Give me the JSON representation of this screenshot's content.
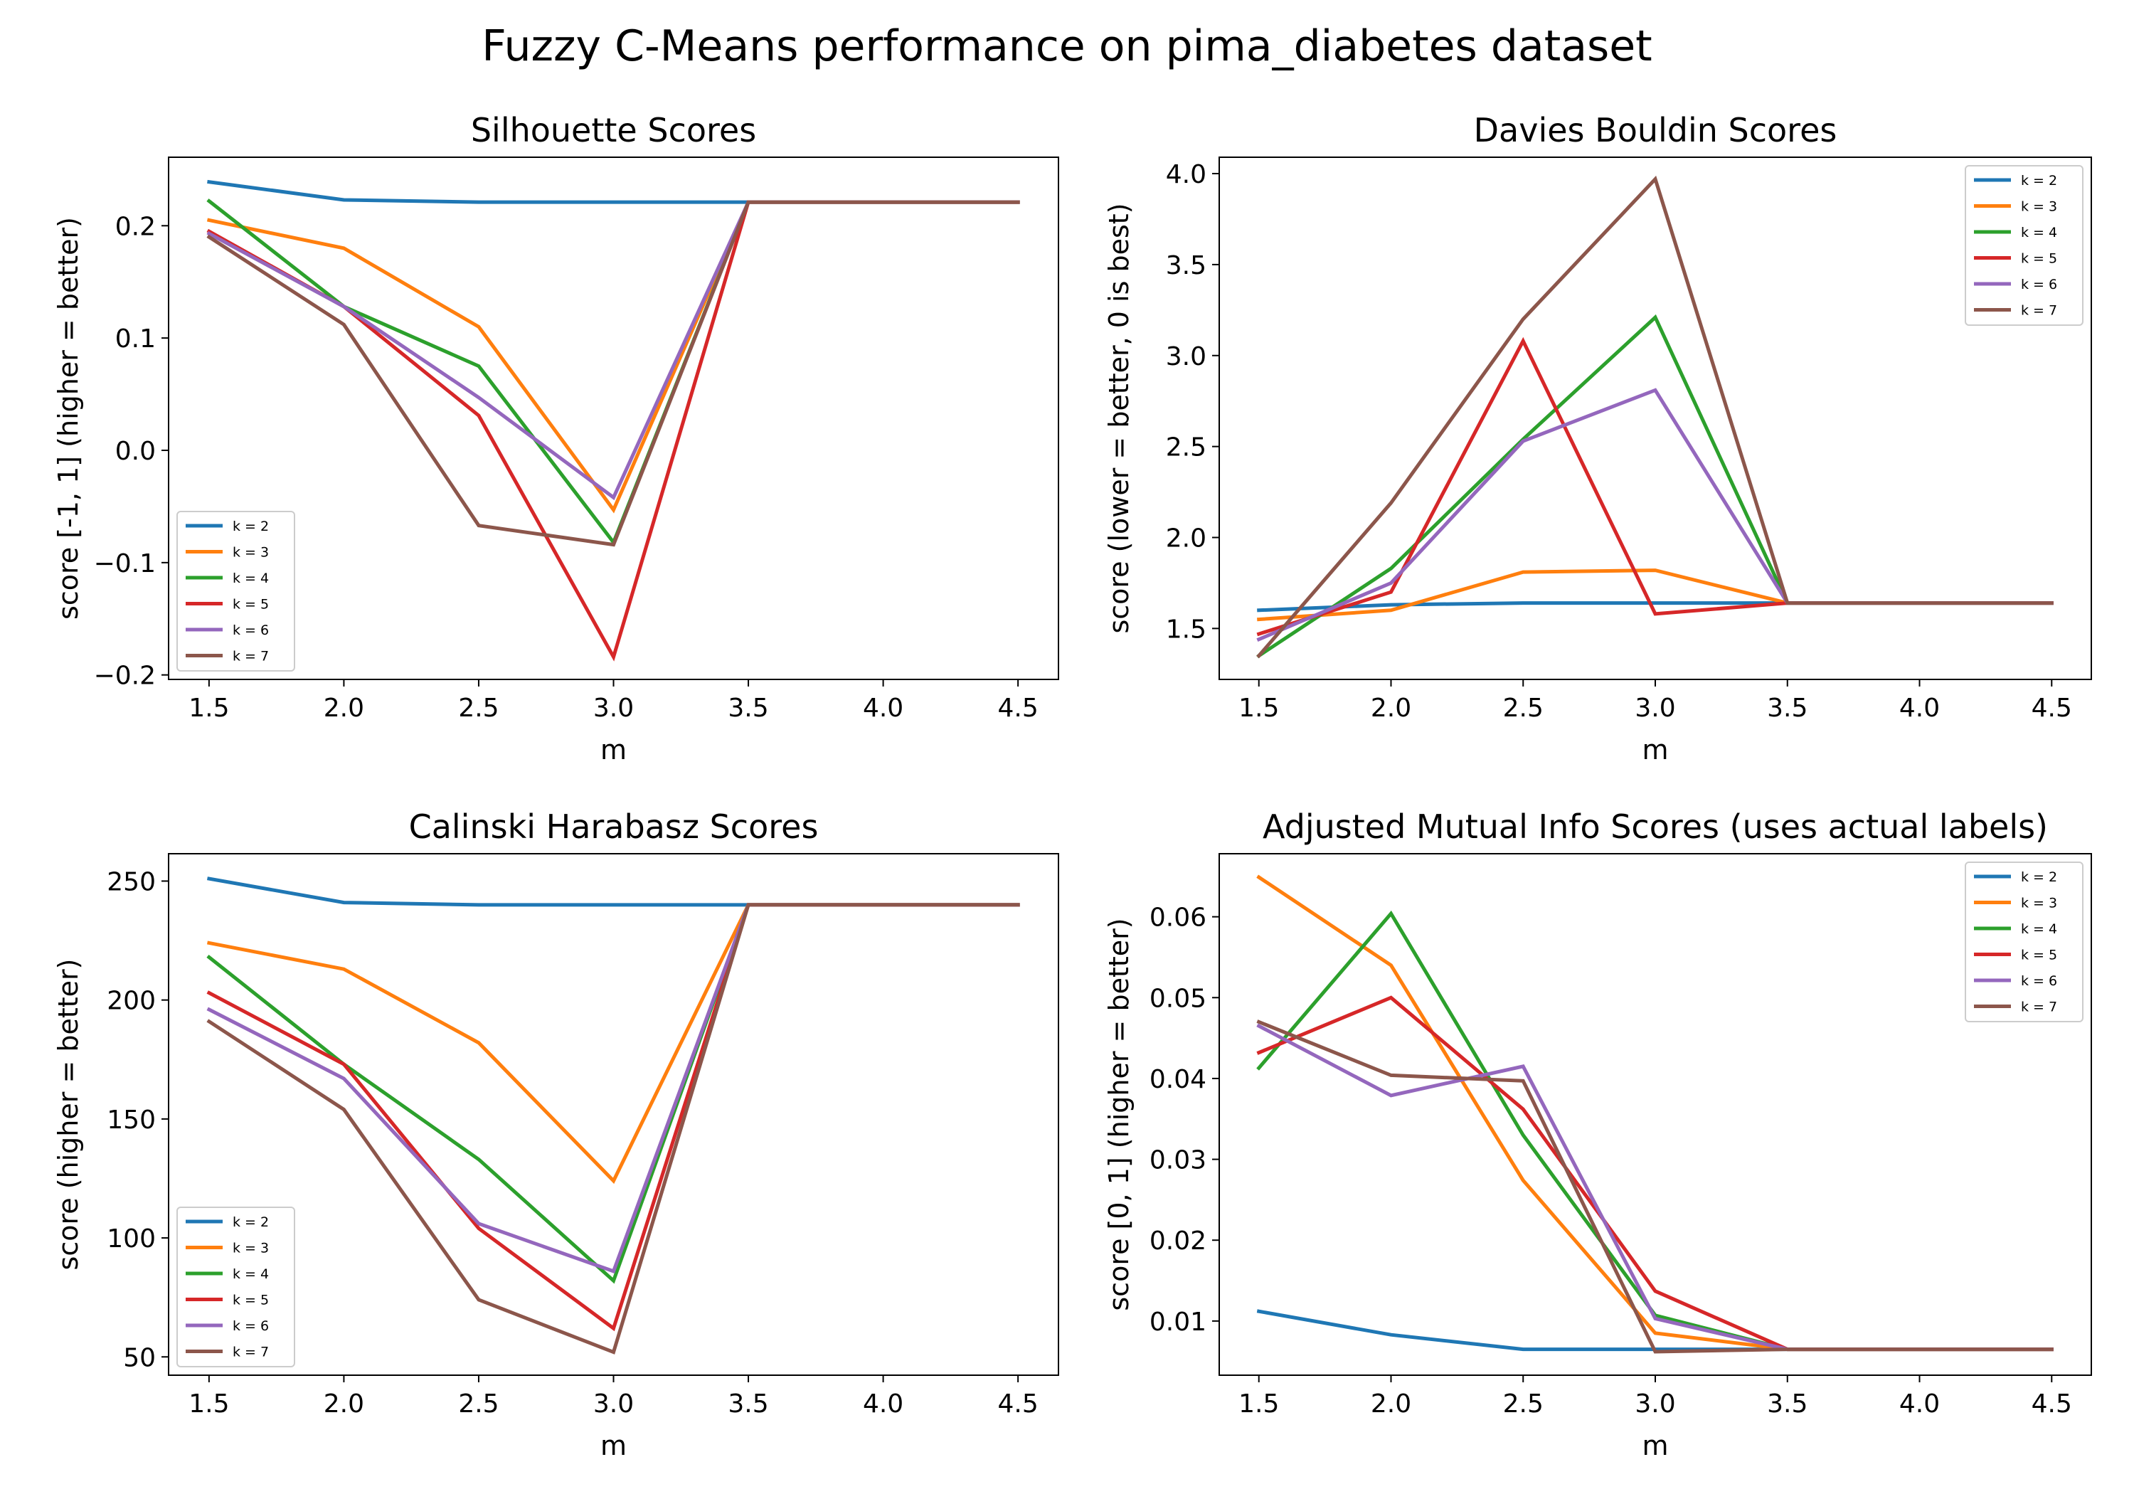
{
  "figure": {
    "title": "Fuzzy C-Means performance on pima_diabetes dataset"
  },
  "colors": {
    "k = 2": "#1f77b4",
    "k = 3": "#ff7f0e",
    "k = 4": "#2ca02c",
    "k = 5": "#d62728",
    "k = 6": "#9467bd",
    "k = 7": "#8c564b"
  },
  "chart_data": [
    {
      "type": "line",
      "title": "Silhouette Scores",
      "xlabel": "m",
      "ylabel": "score [-1, 1] (higher = better)",
      "x": [
        1.5,
        2.0,
        2.5,
        3.0,
        3.5,
        4.0,
        4.5
      ],
      "xticks": [
        "1.5",
        "2.0",
        "2.5",
        "3.0",
        "3.5",
        "4.0",
        "4.5"
      ],
      "xlim": [
        1.35,
        4.65
      ],
      "yticks": [
        -0.2,
        -0.1,
        0.0,
        0.1,
        0.2
      ],
      "ytick_labels": [
        "−0.2",
        "−0.1",
        "0.0",
        "0.1",
        "0.2"
      ],
      "ylim": [
        -0.204,
        0.261
      ],
      "legend_position": "lower-left",
      "series": [
        {
          "name": "k = 2",
          "values": [
            0.239,
            0.223,
            0.221,
            0.221,
            0.221,
            0.221,
            0.221
          ]
        },
        {
          "name": "k = 3",
          "values": [
            0.205,
            0.18,
            0.11,
            -0.053,
            0.221,
            0.221,
            0.221
          ]
        },
        {
          "name": "k = 4",
          "values": [
            0.222,
            0.128,
            0.075,
            -0.082,
            0.221,
            0.221,
            0.221
          ]
        },
        {
          "name": "k = 5",
          "values": [
            0.195,
            0.128,
            0.031,
            -0.184,
            0.221,
            0.221,
            0.221
          ]
        },
        {
          "name": "k = 6",
          "values": [
            0.193,
            0.128,
            0.047,
            -0.042,
            0.221,
            0.221,
            0.221
          ]
        },
        {
          "name": "k = 7",
          "values": [
            0.19,
            0.112,
            -0.067,
            -0.084,
            0.221,
            0.221,
            0.221
          ]
        }
      ]
    },
    {
      "type": "line",
      "title": "Davies Bouldin Scores",
      "xlabel": "m",
      "ylabel": "score (lower = better, 0 is best)",
      "x": [
        1.5,
        2.0,
        2.5,
        3.0,
        3.5,
        4.0,
        4.5
      ],
      "xticks": [
        "1.5",
        "2.0",
        "2.5",
        "3.0",
        "3.5",
        "4.0",
        "4.5"
      ],
      "xlim": [
        1.35,
        4.65
      ],
      "yticks": [
        1.5,
        2.0,
        2.5,
        3.0,
        3.5,
        4.0
      ],
      "ytick_labels": [
        "1.5",
        "2.0",
        "2.5",
        "3.0",
        "3.5",
        "4.0"
      ],
      "ylim": [
        1.22,
        4.09
      ],
      "legend_position": "top-right",
      "series": [
        {
          "name": "k = 2",
          "values": [
            1.6,
            1.63,
            1.64,
            1.64,
            1.64,
            1.64,
            1.64
          ]
        },
        {
          "name": "k = 3",
          "values": [
            1.55,
            1.6,
            1.81,
            1.82,
            1.64,
            1.64,
            1.64
          ]
        },
        {
          "name": "k = 4",
          "values": [
            1.35,
            1.83,
            2.54,
            3.21,
            1.64,
            1.64,
            1.64
          ]
        },
        {
          "name": "k = 5",
          "values": [
            1.47,
            1.7,
            3.08,
            1.58,
            1.64,
            1.64,
            1.64
          ]
        },
        {
          "name": "k = 6",
          "values": [
            1.44,
            1.75,
            2.53,
            2.81,
            1.64,
            1.64,
            1.64
          ]
        },
        {
          "name": "k = 7",
          "values": [
            1.35,
            2.19,
            3.2,
            3.97,
            1.64,
            1.64,
            1.64
          ]
        }
      ]
    },
    {
      "type": "line",
      "title": "Calinski Harabasz Scores",
      "xlabel": "m",
      "ylabel": "score (higher = better)",
      "x": [
        1.5,
        2.0,
        2.5,
        3.0,
        3.5,
        4.0,
        4.5
      ],
      "xticks": [
        "1.5",
        "2.0",
        "2.5",
        "3.0",
        "3.5",
        "4.0",
        "4.5"
      ],
      "xlim": [
        1.35,
        4.65
      ],
      "yticks": [
        50,
        100,
        150,
        200,
        250
      ],
      "ytick_labels": [
        "50",
        "100",
        "150",
        "200",
        "250"
      ],
      "ylim": [
        42.3,
        261.5
      ],
      "legend_position": "lower-left",
      "series": [
        {
          "name": "k = 2",
          "values": [
            251,
            241,
            240,
            240,
            240,
            240,
            240
          ]
        },
        {
          "name": "k = 3",
          "values": [
            224,
            213,
            182,
            124,
            240,
            240,
            240
          ]
        },
        {
          "name": "k = 4",
          "values": [
            218,
            173,
            133,
            82,
            240,
            240,
            240
          ]
        },
        {
          "name": "k = 5",
          "values": [
            203,
            173,
            104,
            62,
            240,
            240,
            240
          ]
        },
        {
          "name": "k = 6",
          "values": [
            196,
            167,
            106,
            86,
            240,
            240,
            240
          ]
        },
        {
          "name": "k = 7",
          "values": [
            191,
            154,
            74,
            52,
            240,
            240,
            240
          ]
        }
      ]
    },
    {
      "type": "line",
      "title": "Adjusted Mutual Info Scores (uses actual labels)",
      "xlabel": "m",
      "ylabel": "score [0, 1] (higher = better)",
      "x": [
        1.5,
        2.0,
        2.5,
        3.0,
        3.5,
        4.0,
        4.5
      ],
      "xticks": [
        "1.5",
        "2.0",
        "2.5",
        "3.0",
        "3.5",
        "4.0",
        "4.5"
      ],
      "xlim": [
        1.35,
        4.65
      ],
      "yticks": [
        0.01,
        0.02,
        0.03,
        0.04,
        0.05,
        0.06
      ],
      "ytick_labels": [
        "0.01",
        "0.02",
        "0.03",
        "0.04",
        "0.05",
        "0.06"
      ],
      "ylim": [
        0.0033,
        0.0678
      ],
      "legend_position": "top-right",
      "series": [
        {
          "name": "k = 2",
          "values": [
            0.0112,
            0.0083,
            0.0065,
            0.0065,
            0.0065,
            0.0065,
            0.0065
          ]
        },
        {
          "name": "k = 3",
          "values": [
            0.0649,
            0.054,
            0.0274,
            0.0085,
            0.0065,
            0.0065,
            0.0065
          ]
        },
        {
          "name": "k = 4",
          "values": [
            0.0413,
            0.0604,
            0.033,
            0.0107,
            0.0065,
            0.0065,
            0.0065
          ]
        },
        {
          "name": "k = 5",
          "values": [
            0.0432,
            0.05,
            0.0362,
            0.0137,
            0.0065,
            0.0065,
            0.0065
          ]
        },
        {
          "name": "k = 6",
          "values": [
            0.0465,
            0.0379,
            0.0415,
            0.0103,
            0.0065,
            0.0065,
            0.0065
          ]
        },
        {
          "name": "k = 7",
          "values": [
            0.047,
            0.0404,
            0.0397,
            0.0062,
            0.0065,
            0.0065,
            0.0065
          ]
        }
      ]
    }
  ]
}
